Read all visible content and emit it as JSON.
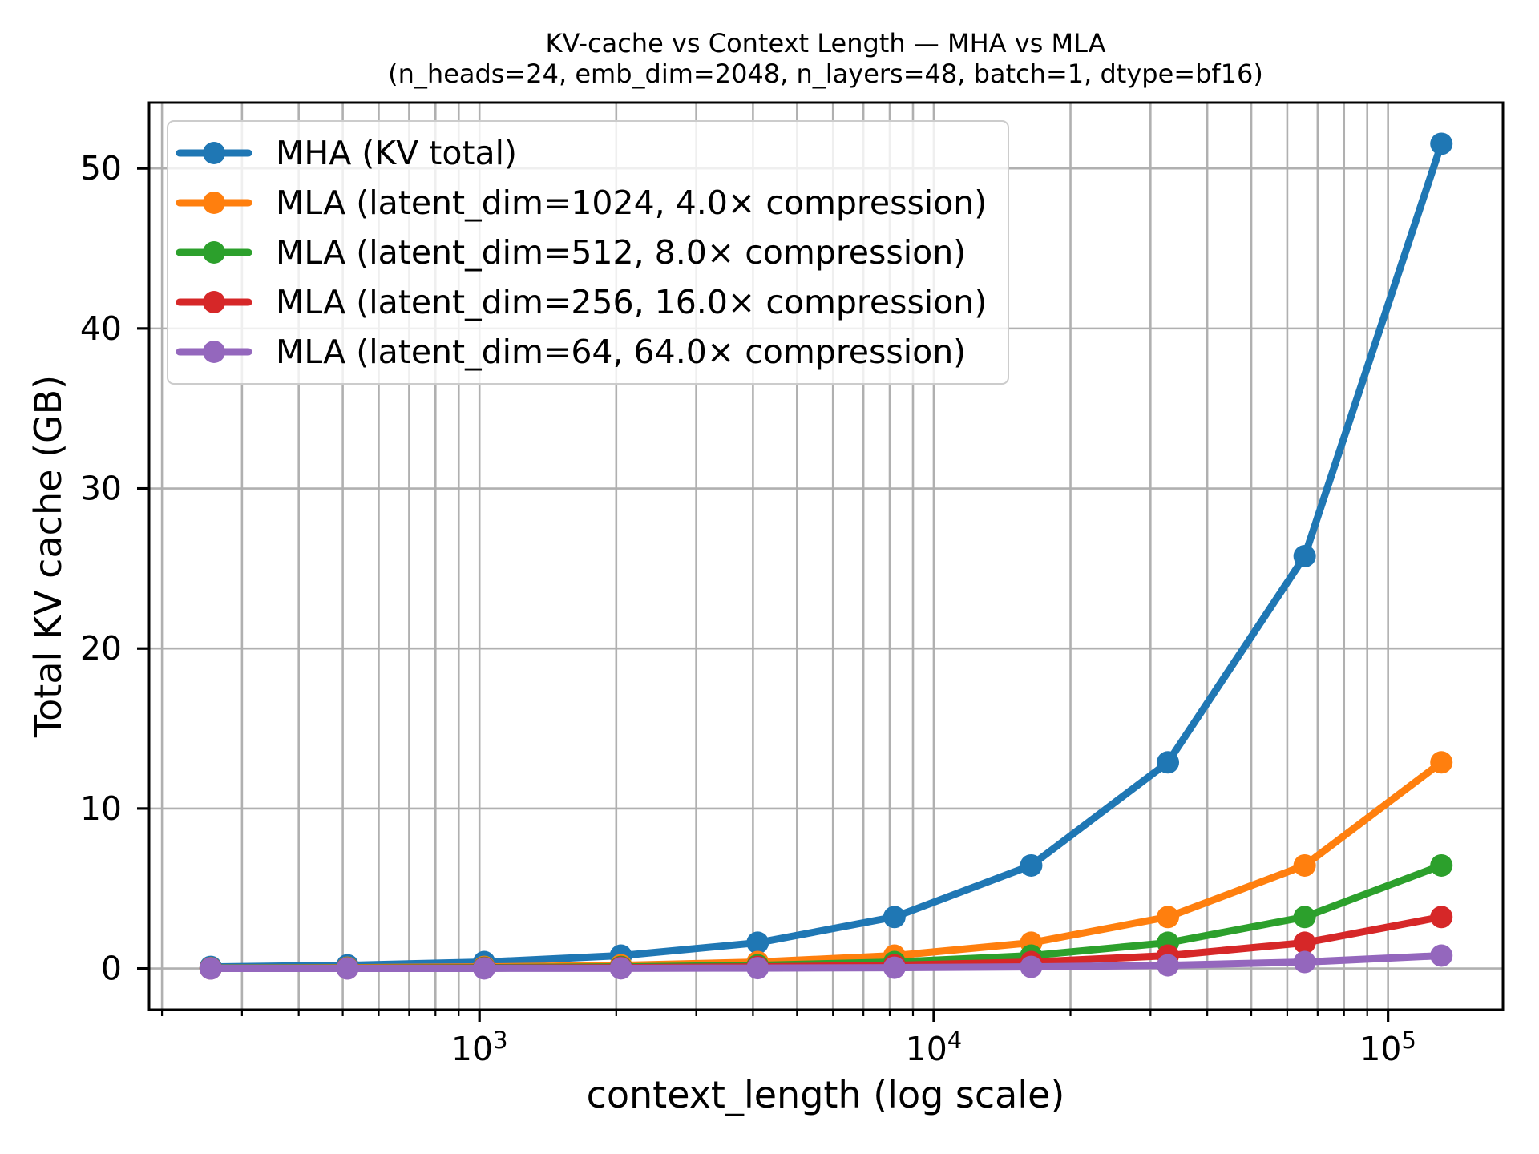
{
  "chart_data": {
    "type": "line",
    "title": "KV-cache vs Context Length — MHA vs MLA",
    "subtitle": "(n_heads=24, emb_dim=2048, n_layers=48, batch=1, dtype=bf16)",
    "xlabel": "context_length (log scale)",
    "ylabel": "Total KV cache (GB)",
    "x_scale": "log",
    "y_scale": "linear",
    "grid": "x: major+minor, y: major",
    "legend_position": "upper left",
    "x": [
      256,
      512,
      1024,
      2048,
      4096,
      8192,
      16384,
      32768,
      65536,
      131072
    ],
    "series": [
      {
        "name": "MHA (KV total)",
        "color": "#1f77b4",
        "values": [
          0.1007,
          0.2013,
          0.4027,
          0.8053,
          1.6106,
          3.2212,
          6.4425,
          12.8849,
          25.7698,
          51.5396
        ]
      },
      {
        "name": "MLA (latent_dim=1024, 4.0× compression)",
        "color": "#ff7f0e",
        "values": [
          0.0252,
          0.0503,
          0.1007,
          0.2013,
          0.4027,
          0.8053,
          1.6106,
          3.2212,
          6.4425,
          12.8849
        ]
      },
      {
        "name": "MLA (latent_dim=512, 8.0× compression)",
        "color": "#2ca02c",
        "values": [
          0.0126,
          0.0252,
          0.0503,
          0.1007,
          0.2013,
          0.4027,
          0.8053,
          1.6106,
          3.2212,
          6.4425
        ]
      },
      {
        "name": "MLA (latent_dim=256, 16.0× compression)",
        "color": "#d62728",
        "values": [
          0.0063,
          0.0126,
          0.0252,
          0.0503,
          0.1007,
          0.2013,
          0.4027,
          0.8053,
          1.6106,
          3.2212
        ]
      },
      {
        "name": "MLA (latent_dim=64, 64.0× compression)",
        "color": "#9467bd",
        "values": [
          0.0016,
          0.0031,
          0.0063,
          0.0126,
          0.0252,
          0.0503,
          0.1007,
          0.2013,
          0.4027,
          0.8053
        ]
      }
    ],
    "xlim": [
      187.35,
      179040
    ],
    "ylim": [
      -2.575,
      54.116
    ],
    "y_ticks": [
      0,
      10,
      20,
      30,
      40,
      50
    ],
    "x_major_ticks": [
      1000,
      10000,
      100000
    ]
  },
  "style": {
    "background": "#ffffff",
    "grid_color": "#b0b0b0",
    "axis_color": "#000000",
    "text_color": "#000000",
    "legend_border_color": "#cccccc"
  }
}
